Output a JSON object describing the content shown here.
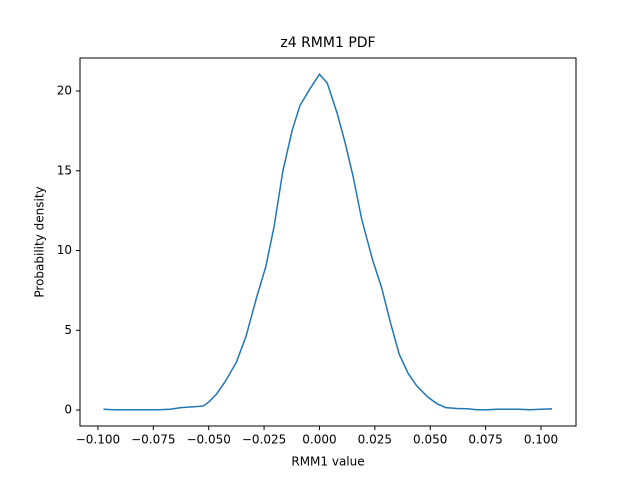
{
  "chart_data": {
    "type": "line",
    "title": "z4 RMM1 PDF",
    "x_label": "RMM1 value",
    "y_label": "Probability density",
    "x": [
      -0.0975,
      -0.0925,
      -0.0875,
      -0.0825,
      -0.0775,
      -0.0725,
      -0.0675,
      -0.0625,
      -0.0575,
      -0.0525,
      -0.05,
      -0.0465,
      -0.0425,
      -0.0375,
      -0.0332,
      -0.0285,
      -0.0242,
      -0.0205,
      -0.0165,
      -0.0124,
      -0.0088,
      -0.004,
      0.0,
      0.0035,
      0.008,
      0.0115,
      0.0151,
      0.019,
      0.024,
      0.028,
      0.032,
      0.036,
      0.04,
      0.044,
      0.049,
      0.053,
      0.057,
      0.062,
      0.067,
      0.071,
      0.076,
      0.08,
      0.085,
      0.09,
      0.095,
      0.1,
      0.105
    ],
    "series": [
      {
        "name": "RMM1",
        "color": "#1f77b4",
        "values": [
          0.05,
          0.02,
          0.02,
          0.02,
          0.02,
          0.02,
          0.05,
          0.15,
          0.2,
          0.25,
          0.5,
          1.0,
          1.8,
          3.0,
          4.6,
          7.0,
          9.0,
          11.5,
          15.0,
          17.5,
          19.1,
          20.2,
          21.05,
          20.5,
          18.6,
          16.8,
          14.7,
          12.0,
          9.4,
          7.7,
          5.5,
          3.5,
          2.3,
          1.5,
          0.8,
          0.4,
          0.15,
          0.1,
          0.08,
          0.02,
          0.02,
          0.05,
          0.05,
          0.05,
          0.02,
          0.05,
          0.07
        ]
      }
    ],
    "xlim": [
      -0.1081,
      0.1158
    ],
    "ylim": [
      -1.0,
      22.07
    ],
    "xticks": [
      {
        "value": -0.1,
        "label": "−0.100"
      },
      {
        "value": -0.075,
        "label": "−0.075"
      },
      {
        "value": -0.05,
        "label": "−0.050"
      },
      {
        "value": -0.025,
        "label": "−0.025"
      },
      {
        "value": 0,
        "label": "0.000"
      },
      {
        "value": 0.025,
        "label": "0.025"
      },
      {
        "value": 0.05,
        "label": "0.050"
      },
      {
        "value": 0.075,
        "label": "0.075"
      },
      {
        "value": 0.1,
        "label": "0.100"
      }
    ],
    "yticks": [
      0,
      5,
      10,
      15,
      20
    ]
  }
}
